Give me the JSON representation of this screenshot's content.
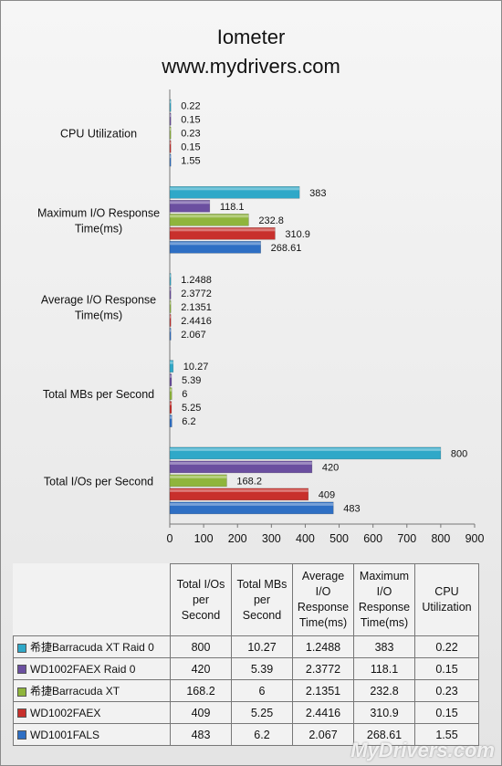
{
  "title_line1": "Iometer",
  "title_line2": "www.mydrivers.com",
  "watermark": "MyDrivers.com",
  "colors": {
    "series": [
      "#2e6fc4",
      "#c8302c",
      "#8fb53c",
      "#6b4fa0",
      "#2fa8c8"
    ]
  },
  "chart_data": {
    "type": "bar",
    "orientation": "horizontal",
    "categories": [
      "Total I/Os per Second",
      "Total MBs per Second",
      "Average I/O Response Time(ms)",
      "Maximum I/O Response Time(ms)",
      "CPU Utilization"
    ],
    "series": [
      {
        "name": "WD1001FALS",
        "values": [
          483,
          6.2,
          2.067,
          268.61,
          1.55
        ],
        "labels": [
          "483",
          "6.2",
          "2.067",
          "268.61",
          "1.55"
        ]
      },
      {
        "name": "WD1002FAEX",
        "values": [
          409,
          5.25,
          2.4416,
          310.9,
          0.15
        ],
        "labels": [
          "409",
          "5.25",
          "2.4416",
          "310.9",
          "0.15"
        ]
      },
      {
        "name": "希捷Barracuda XT",
        "values": [
          168.2,
          6,
          2.1351,
          232.8,
          0.23
        ],
        "labels": [
          "168.2",
          "6",
          "2.1351",
          "232.8",
          "0.23"
        ]
      },
      {
        "name": "WD1002FAEX Raid 0",
        "values": [
          420,
          5.39,
          2.3772,
          118.1,
          0.15
        ],
        "labels": [
          "420",
          "5.39",
          "2.3772",
          "118.1",
          "0.15"
        ]
      },
      {
        "name": "希捷Barracuda XT Raid 0",
        "values": [
          800,
          10.27,
          1.2488,
          383,
          0.22
        ],
        "labels": [
          "800",
          "10.27",
          "1.2488",
          "383",
          "0.22"
        ]
      }
    ],
    "xlim": [
      0,
      900
    ],
    "xticks": [
      "0",
      "100",
      "200",
      "300",
      "400",
      "500",
      "600",
      "700",
      "800",
      "900"
    ],
    "grid": false,
    "legend": "data table below chart"
  },
  "table": {
    "columns": [
      "Total I/Os per Second",
      "Total MBs per Second",
      "Average I/O Response Time(ms)",
      "Maximum I/O Response Time(ms)",
      "CPU Utilization"
    ],
    "rows": [
      {
        "name": "希捷Barracuda XT Raid 0",
        "cells": [
          "800",
          "10.27",
          "1.2488",
          "383",
          "0.22"
        ]
      },
      {
        "name": "WD1002FAEX Raid 0",
        "cells": [
          "420",
          "5.39",
          "2.3772",
          "118.1",
          "0.15"
        ]
      },
      {
        "name": "希捷Barracuda XT",
        "cells": [
          "168.2",
          "6",
          "2.1351",
          "232.8",
          "0.23"
        ]
      },
      {
        "name": "WD1002FAEX",
        "cells": [
          "409",
          "5.25",
          "2.4416",
          "310.9",
          "0.15"
        ]
      },
      {
        "name": "WD1001FALS",
        "cells": [
          "483",
          "6.2",
          "2.067",
          "268.61",
          "1.55"
        ]
      }
    ]
  }
}
